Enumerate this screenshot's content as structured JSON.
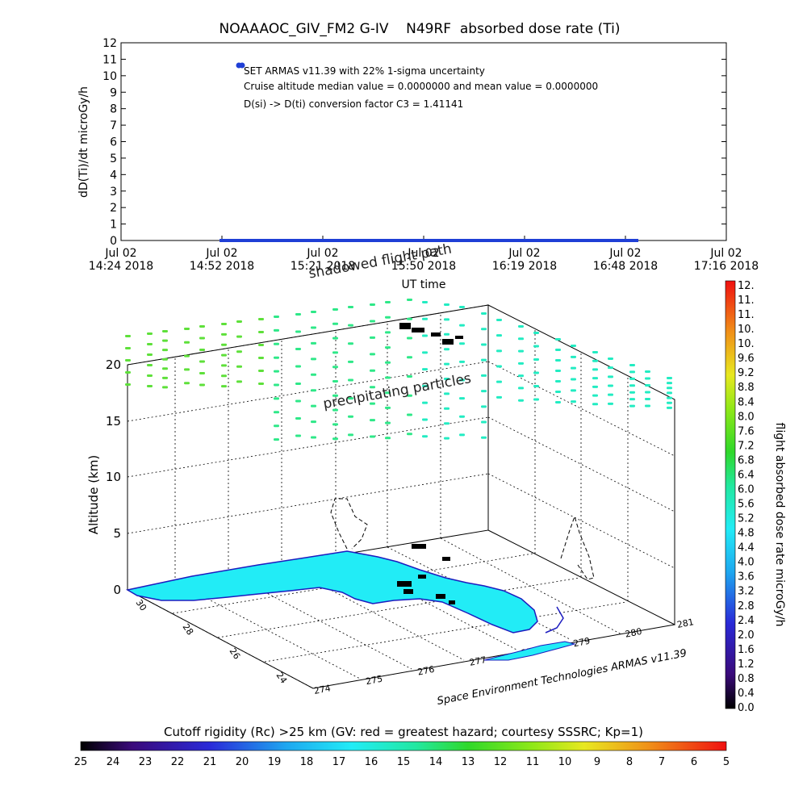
{
  "title": "NOAAAOC_GIV_FM2 G-IV    N49RF  absorbed dose rate (Ti)",
  "chart_data": [
    {
      "type": "line",
      "ylabel": "dD(Ti)/dt microGy/h",
      "xlabel": "UT time",
      "ylim": [
        0,
        12
      ],
      "y_ticks": [
        "0",
        "1",
        "2",
        "3",
        "4",
        "5",
        "6",
        "7",
        "8",
        "9",
        "10",
        "11",
        "12"
      ],
      "x_ticks": [
        {
          "date": "Jul 02",
          "time": "14:24 2018"
        },
        {
          "date": "Jul 02",
          "time": "14:52 2018"
        },
        {
          "date": "Jul 02",
          "time": "15:21 2018"
        },
        {
          "date": "Jul 02",
          "time": "15:50 2018"
        },
        {
          "date": "Jul 02",
          "time": "16:19 2018"
        },
        {
          "date": "Jul 02",
          "time": "16:48 2018"
        },
        {
          "date": "Jul 02",
          "time": "17:16 2018"
        }
      ],
      "xlim": [
        "14:24",
        "17:16"
      ],
      "series": [
        {
          "x_start": "14:52",
          "x_end": "16:51",
          "value": 0,
          "color": "#1f3fd6"
        }
      ],
      "legend_marker_color": "#1f3fd6",
      "annotations": [
        "SET ARMAS v11.39 with 22% 1-sigma uncertainty",
        "Cruise altitude median value = 0.0000000 and mean value = 0.0000000",
        "D(si) -> D(ti) conversion factor C3 = 1.41141"
      ]
    },
    {
      "type": "scatter",
      "zlabel": "Altitude (km)",
      "z_ticks": [
        "0",
        "5",
        "10",
        "15",
        "20"
      ],
      "lat_ticks": [
        "30",
        "28",
        "26",
        "24"
      ],
      "lon_ticks": [
        "274",
        "275",
        "276",
        "277",
        "278",
        "279",
        "280",
        "281"
      ],
      "labels": {
        "shadowed": "shadowed flight path",
        "precipitating": "precipitating particles",
        "credit": "Space Environment Technologies ARMAS v11.39"
      },
      "map_fill_color": "#22ecf6",
      "particle_colors": [
        "#5ee03a",
        "#2ee888",
        "#22ecc2"
      ],
      "colorbar": {
        "label": "flight absorbed dose rate microGy/h",
        "ticks": [
          "12.",
          "11.",
          "11.",
          "10.",
          "10.",
          "9.6",
          "9.2",
          "8.8",
          "8.4",
          "8.0",
          "7.6",
          "7.2",
          "6.8",
          "6.4",
          "6.0",
          "5.6",
          "5.2",
          "4.8",
          "4.4",
          "4.0",
          "3.6",
          "3.2",
          "2.8",
          "2.4",
          "2.0",
          "1.6",
          "1.2",
          "0.8",
          "0.4",
          "0.0"
        ]
      }
    }
  ],
  "cutoff_bar": {
    "title": "Cutoff rigidity (Rc) >25 km (GV: red = greatest hazard; courtesy SSSRC; Kp=1)",
    "ticks": [
      "25",
      "24",
      "23",
      "22",
      "21",
      "20",
      "19",
      "18",
      "17",
      "16",
      "15",
      "14",
      "13",
      "12",
      "11",
      "10",
      "9",
      "8",
      "7",
      "6",
      "5"
    ]
  }
}
